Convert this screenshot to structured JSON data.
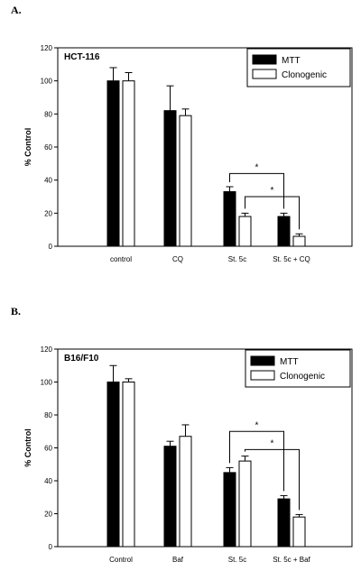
{
  "chart_data": [
    {
      "type": "bar",
      "panel_label": "A.",
      "title": "HCT-116",
      "ylabel": "% Control",
      "xlabel": "",
      "ylim": [
        0,
        120
      ],
      "yticks": [
        "0",
        "20",
        "40",
        "60",
        "80",
        "100",
        "120"
      ],
      "categories": [
        "control",
        "CQ",
        "St. 5c",
        "St. 5c + CQ"
      ],
      "series": [
        {
          "name": "MTT",
          "color": "#000000",
          "values": [
            100,
            82,
            33,
            18
          ],
          "errors": [
            8,
            15,
            3,
            2
          ]
        },
        {
          "name": "Clonogenic",
          "color": "#ffffff",
          "values": [
            100,
            79,
            18,
            6
          ],
          "errors": [
            5,
            4,
            2,
            1.5
          ]
        }
      ],
      "legend_position": "top-right",
      "grid": false,
      "annotations": [
        {
          "text": "*",
          "from": "St. 5c/MTT",
          "to": "St. 5c + CQ/MTT"
        },
        {
          "text": "*",
          "from": "St. 5c/Clonogenic",
          "to": "St. 5c + CQ/Clonogenic"
        }
      ]
    },
    {
      "type": "bar",
      "panel_label": "B.",
      "title": "B16/F10",
      "ylabel": "% Control",
      "xlabel": "",
      "ylim": [
        0,
        120
      ],
      "yticks": [
        "0",
        "20",
        "40",
        "60",
        "80",
        "100",
        "120"
      ],
      "categories": [
        "Control",
        "Baf",
        "St. 5c",
        "St. 5c + Baf"
      ],
      "series": [
        {
          "name": "MTT",
          "color": "#000000",
          "values": [
            100,
            61,
            45,
            29
          ],
          "errors": [
            10,
            3,
            3,
            2
          ]
        },
        {
          "name": "Clonogenic",
          "color": "#ffffff",
          "values": [
            100,
            67,
            52,
            18
          ],
          "errors": [
            2,
            7,
            3,
            1.5
          ]
        }
      ],
      "legend_position": "top-right",
      "grid": false,
      "annotations": [
        {
          "text": "*",
          "from": "St. 5c/MTT",
          "to": "St. 5c + Baf/MTT"
        },
        {
          "text": "*",
          "from": "St. 5c/Clonogenic",
          "to": "St. 5c + Baf/Clonogenic"
        }
      ]
    }
  ]
}
